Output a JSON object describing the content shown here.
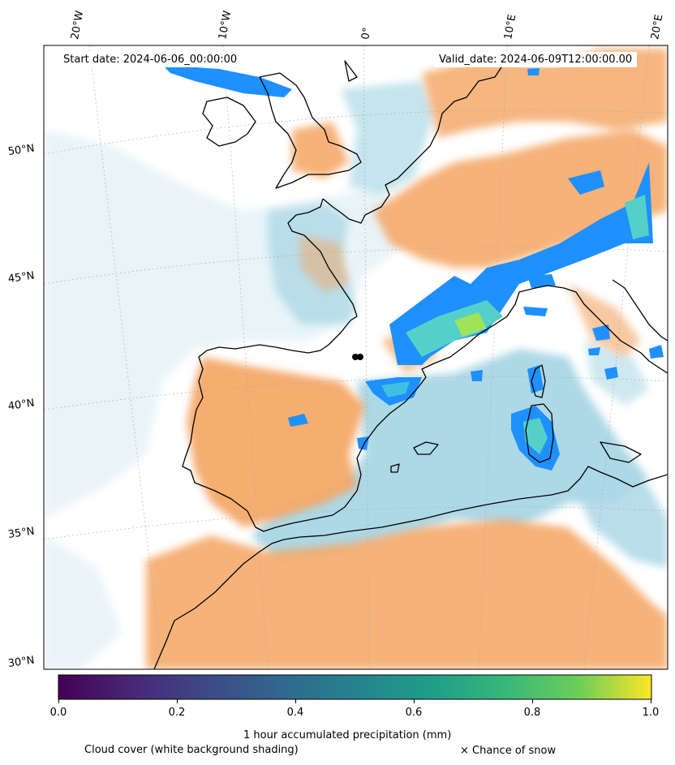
{
  "map": {
    "start_date_label": "Start date: 2024-06-06_00:00:00",
    "valid_date_label": "Valid_date: 2024-06-09T12:00:00.00",
    "lon_labels": [
      "20°W",
      "10°W",
      "0°",
      "10°E",
      "20°E"
    ],
    "lat_labels": [
      "50°N",
      "45°N",
      "40°N",
      "35°N",
      "30°N"
    ],
    "colors": {
      "land_cloud_free": "#f4a460",
      "sea_cloud_free": "#add8e6",
      "cloud_cover": "#ffffff",
      "precip_low": "#1e90ff",
      "precip_high": "#7ee35a",
      "coastline": "#000000"
    }
  },
  "colorbar": {
    "title": "1 hour accumulated precipitation (mm)",
    "ticks": [
      "0.0",
      "0.2",
      "0.4",
      "0.6",
      "0.8",
      "1.0"
    ],
    "colormap": "viridis",
    "range": [
      0.0,
      1.0
    ]
  },
  "legend": {
    "cloud_label": "Cloud cover (white background shading)",
    "snow_label": "× Chance of snow"
  }
}
